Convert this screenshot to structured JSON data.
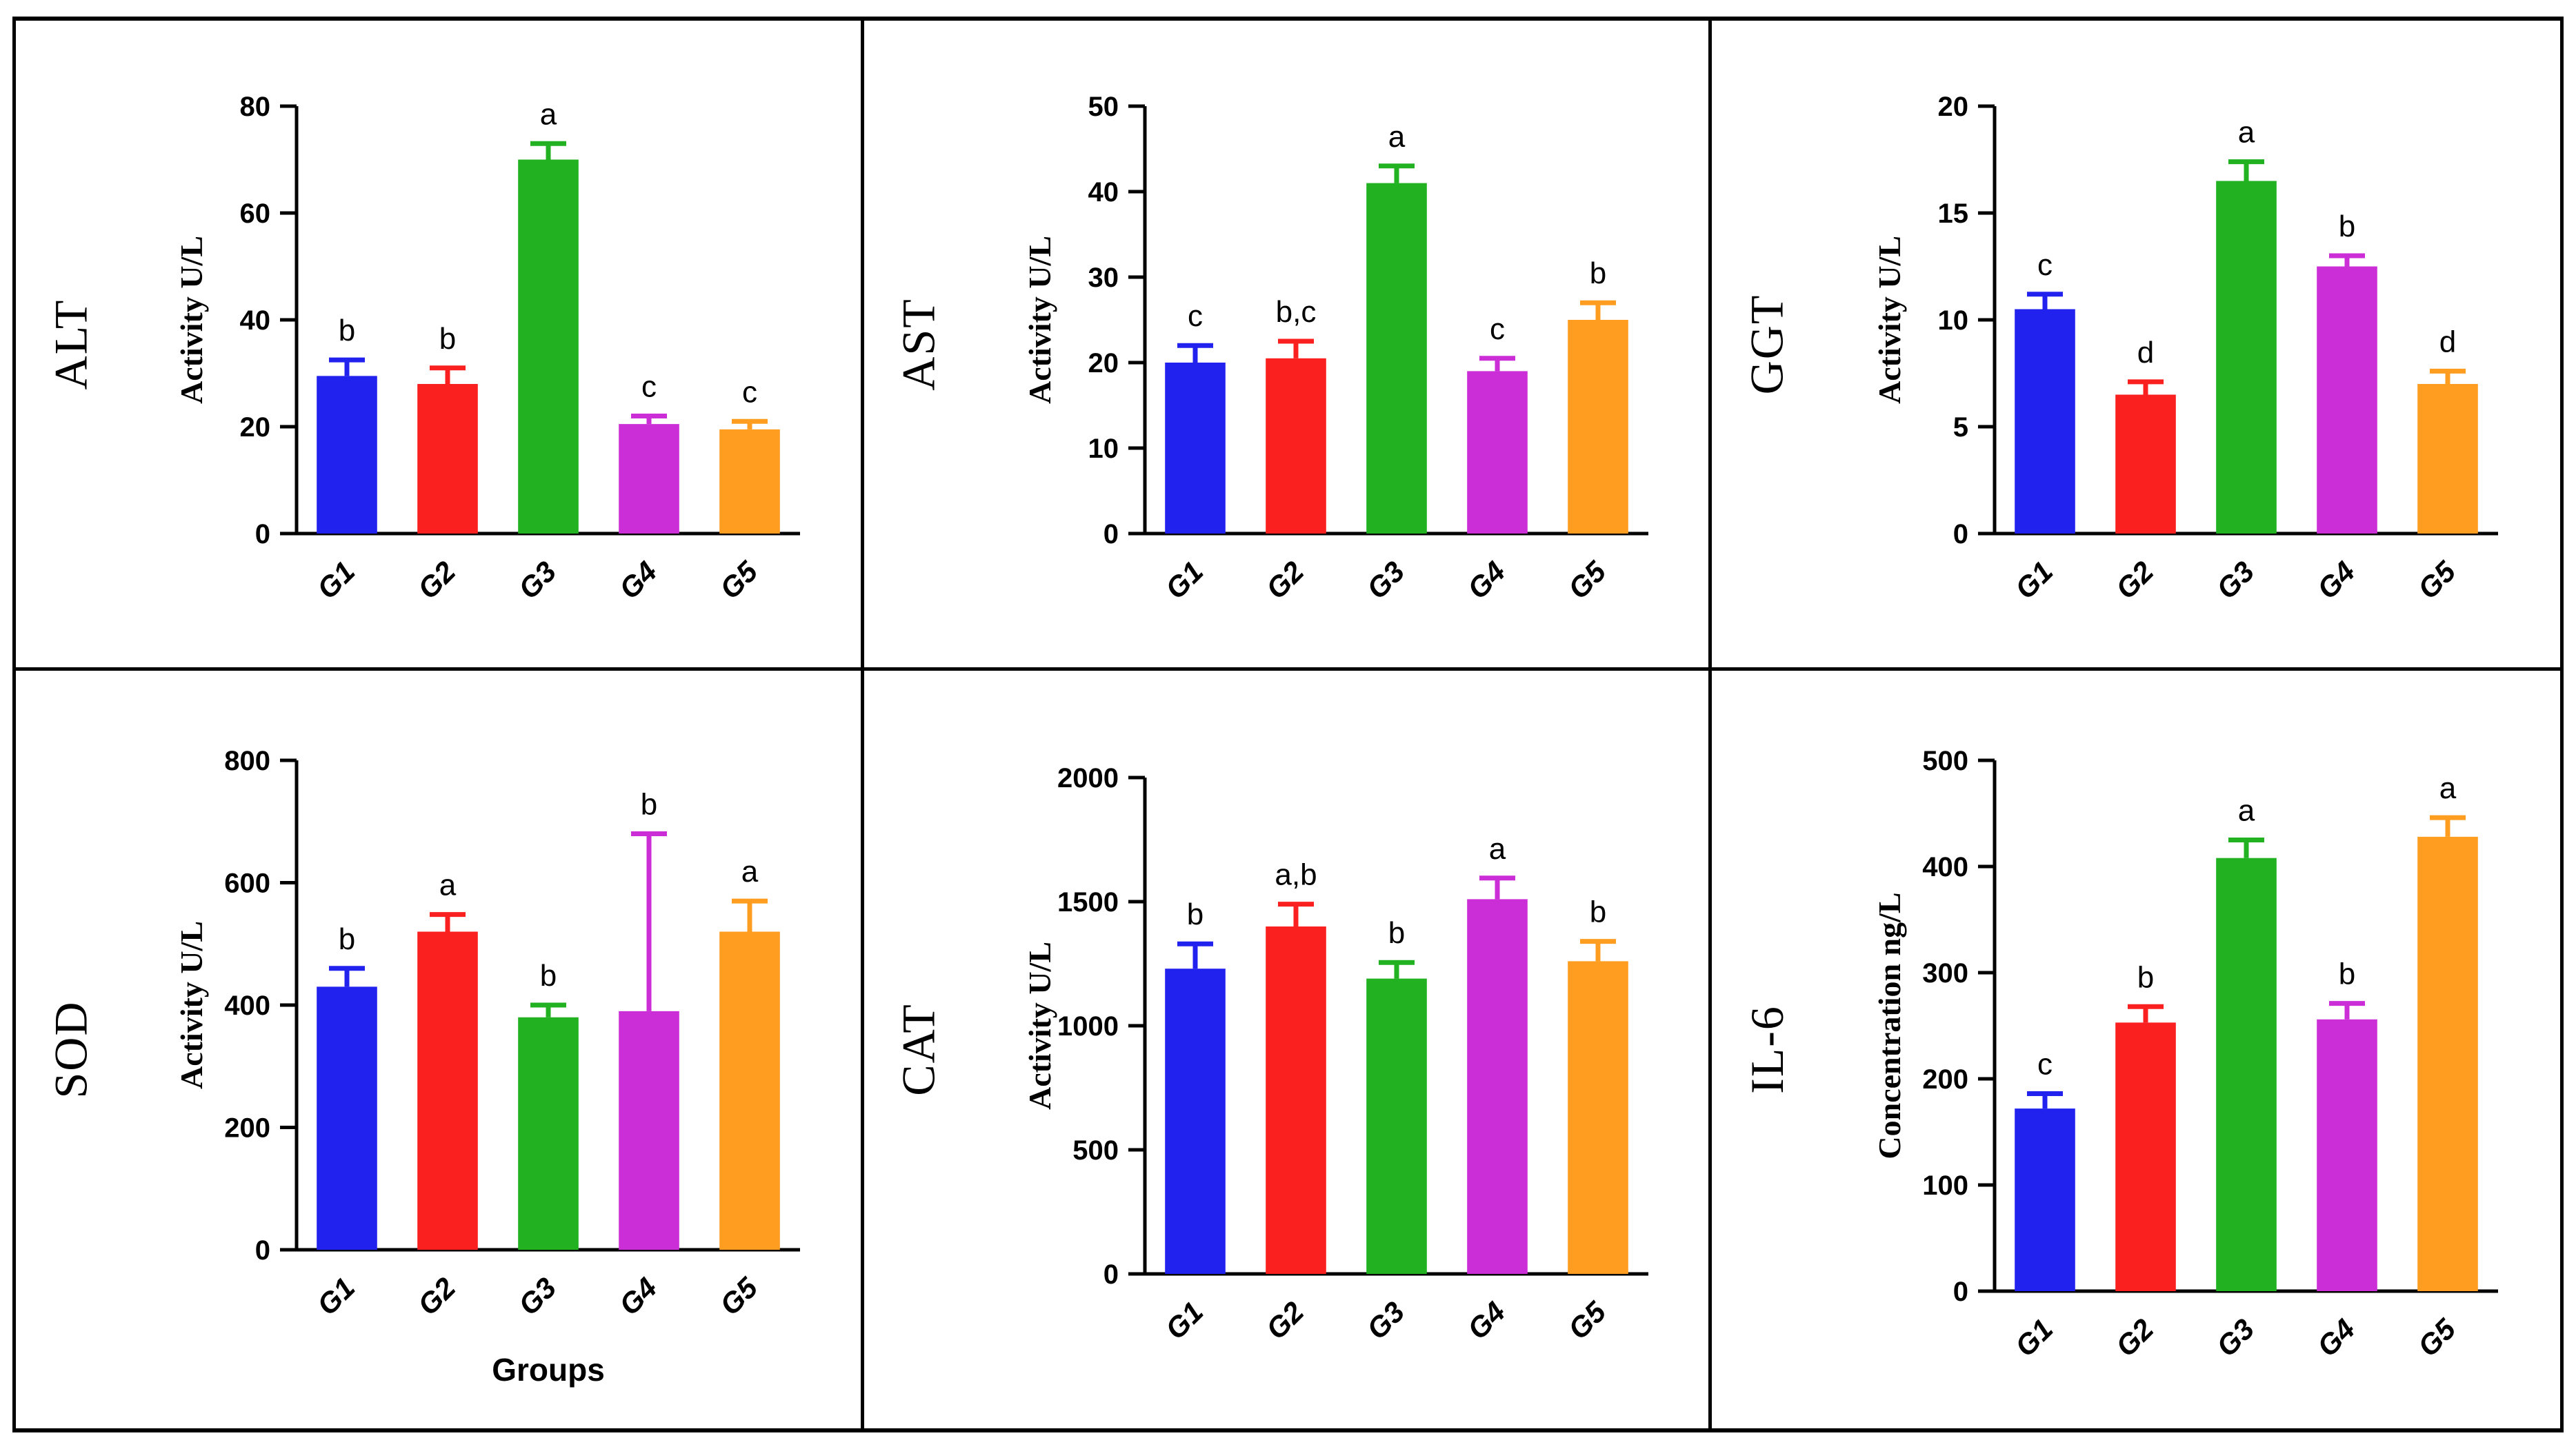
{
  "figure": {
    "categories": [
      "G1",
      "G2",
      "G3",
      "G4",
      "G5"
    ],
    "bar_colors": [
      "#2222ef",
      "#fb2020",
      "#21b121",
      "#cb2ed6",
      "#ff9d20"
    ],
    "axis_color": "#000000",
    "background": "#ffffff"
  },
  "chart_data": [
    {
      "type": "bar",
      "panel_label": "ALT",
      "title": "",
      "xlabel": "",
      "ylabel": "Activity U/L",
      "categories": [
        "G1",
        "G2",
        "G3",
        "G4",
        "G5"
      ],
      "values": [
        29.5,
        28,
        70,
        20.5,
        19.5
      ],
      "errors": [
        3,
        3,
        3,
        1.5,
        1.5
      ],
      "sig_letters": [
        "b",
        "b",
        "a",
        "c",
        "c"
      ],
      "ylim": [
        0,
        80
      ],
      "yticks": [
        0,
        20,
        40,
        60,
        80
      ],
      "legend": "none",
      "grid": "off"
    },
    {
      "type": "bar",
      "panel_label": "AST",
      "title": "",
      "xlabel": "",
      "ylabel": "Activity U/L",
      "categories": [
        "G1",
        "G2",
        "G3",
        "G4",
        "G5"
      ],
      "values": [
        20,
        20.5,
        41,
        19,
        25
      ],
      "errors": [
        2,
        2,
        2,
        1.5,
        2
      ],
      "sig_letters": [
        "c",
        "b,c",
        "a",
        "c",
        "b"
      ],
      "ylim": [
        0,
        50
      ],
      "yticks": [
        0,
        10,
        20,
        30,
        40,
        50
      ],
      "legend": "none",
      "grid": "off"
    },
    {
      "type": "bar",
      "panel_label": "GGT",
      "title": "",
      "xlabel": "",
      "ylabel": "Activity U/L",
      "categories": [
        "G1",
        "G2",
        "G3",
        "G4",
        "G5"
      ],
      "values": [
        10.5,
        6.5,
        16.5,
        12.5,
        7
      ],
      "errors": [
        0.7,
        0.6,
        0.9,
        0.5,
        0.6
      ],
      "sig_letters": [
        "c",
        "d",
        "a",
        "b",
        "d"
      ],
      "ylim": [
        0,
        20
      ],
      "yticks": [
        0,
        5,
        10,
        15,
        20
      ],
      "legend": "none",
      "grid": "off"
    },
    {
      "type": "bar",
      "panel_label": "SOD",
      "title": "",
      "xlabel": "Groups",
      "ylabel": "Activity U/L",
      "categories": [
        "G1",
        "G2",
        "G3",
        "G4",
        "G5"
      ],
      "values": [
        430,
        520,
        380,
        390,
        520
      ],
      "errors": [
        30,
        28,
        20,
        290,
        50
      ],
      "sig_letters": [
        "b",
        "a",
        "b",
        "b",
        "a"
      ],
      "ylim": [
        0,
        800
      ],
      "yticks": [
        0,
        200,
        400,
        600,
        800
      ],
      "legend": "none",
      "grid": "off"
    },
    {
      "type": "bar",
      "panel_label": "CAT",
      "title": "",
      "xlabel": "",
      "ylabel": "Activity U/L",
      "categories": [
        "G1",
        "G2",
        "G3",
        "G4",
        "G5"
      ],
      "values": [
        1230,
        1400,
        1190,
        1510,
        1260
      ],
      "errors": [
        100,
        90,
        65,
        85,
        80
      ],
      "sig_letters": [
        "b",
        "a,b",
        "b",
        "a",
        "b"
      ],
      "ylim": [
        0,
        2000
      ],
      "yticks": [
        0,
        500,
        1000,
        1500,
        2000
      ],
      "legend": "none",
      "grid": "off"
    },
    {
      "type": "bar",
      "panel_label": "IL-6",
      "title": "",
      "xlabel": "",
      "ylabel": "Concentration ng/L",
      "categories": [
        "G1",
        "G2",
        "G3",
        "G4",
        "G5"
      ],
      "values": [
        172,
        253,
        408,
        256,
        428
      ],
      "errors": [
        14,
        15,
        17,
        15,
        18
      ],
      "sig_letters": [
        "c",
        "b",
        "a",
        "b",
        "a"
      ],
      "ylim": [
        0,
        500
      ],
      "yticks": [
        0,
        100,
        200,
        300,
        400,
        500
      ],
      "legend": "none",
      "grid": "off"
    }
  ]
}
